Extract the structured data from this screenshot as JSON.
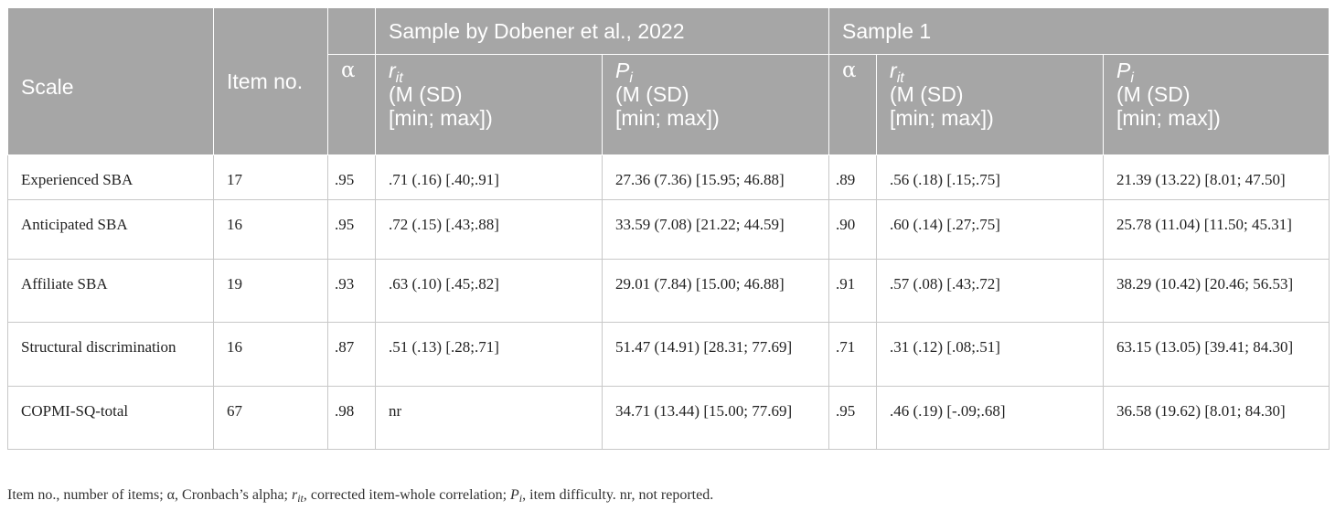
{
  "header": {
    "scale": "Scale",
    "item_no": "Item no.",
    "alpha": "α",
    "group1": "Sample by Dobener et al., 2022",
    "group2": "Sample 1",
    "rit_symbol": "r",
    "rit_sub": "it",
    "pi_symbol": "P",
    "pi_sub": "i",
    "stat_line1": "(M (SD)",
    "stat_line2": "[min; max])"
  },
  "rows": [
    {
      "scale": "Experienced SBA",
      "items": "17",
      "alpha1": ".95",
      "rit1": ".71 (.16) [.40;.91]",
      "pi1": "27.36 (7.36) [15.95; 46.88]",
      "alpha2": ".89",
      "rit2": ".56 (.18) [.15;.75]",
      "pi2": "21.39 (13.22) [8.01; 47.50]"
    },
    {
      "scale": "Anticipated SBA",
      "items": "16",
      "alpha1": ".95",
      "rit1": ".72 (.15) [.43;.88]",
      "pi1": "33.59 (7.08) [21.22; 44.59]",
      "alpha2": ".90",
      "rit2": ".60 (.14) [.27;.75]",
      "pi2": "25.78 (11.04) [11.50; 45.31]"
    },
    {
      "scale": "Affiliate SBA",
      "items": "19",
      "alpha1": ".93",
      "rit1": ".63 (.10) [.45;.82]",
      "pi1": "29.01 (7.84) [15.00; 46.88]",
      "alpha2": ".91",
      "rit2": ".57 (.08) [.43;.72]",
      "pi2": "38.29 (10.42) [20.46; 56.53]"
    },
    {
      "scale": "Structural discrimination",
      "items": "16",
      "alpha1": ".87",
      "rit1": ".51 (.13) [.28;.71]",
      "pi1": "51.47 (14.91) [28.31; 77.69]",
      "alpha2": ".71",
      "rit2": ".31 (.12) [.08;.51]",
      "pi2": "63.15 (13.05) [39.41; 84.30]"
    },
    {
      "scale": "COPMI-SQ-total",
      "items": "67",
      "alpha1": ".98",
      "rit1": "nr",
      "pi1": "34.71 (13.44) [15.00; 77.69]",
      "alpha2": ".95",
      "rit2": ".46 (.19) [-.09;.68]",
      "pi2": "36.58 (19.62) [8.01; 84.30]"
    }
  ],
  "footnote": {
    "part1": "Item no., number of items; α, Cronbach’s alpha; ",
    "rit_symbol": "r",
    "rit_sub": "it",
    "part2": ", corrected item-whole correlation; ",
    "pi_symbol": "P",
    "pi_sub": "i",
    "part3": ", item difficulty. nr, not reported."
  }
}
